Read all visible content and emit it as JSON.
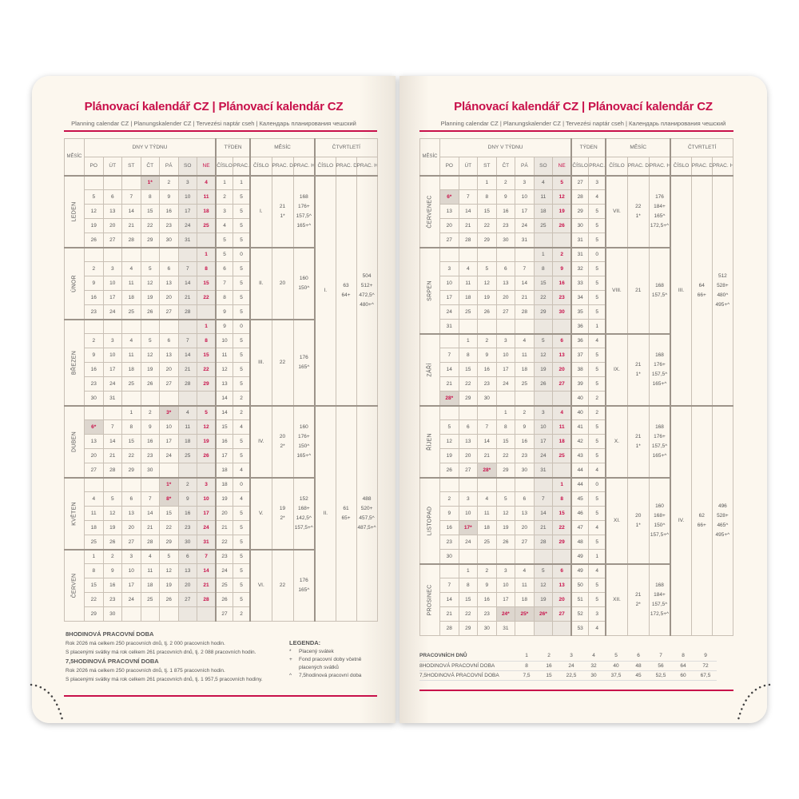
{
  "title": "Plánovací kalendář CZ | Plánovací kalendár CZ",
  "subtitle": "Planning calendar CZ | Planungskalender CZ | Tervezési naptár cseh | Календарь планирования чешский",
  "year": 2026,
  "colors": {
    "accent": "#c8104a",
    "weekend": "#ece7e0",
    "holiday": "#ddd6ce",
    "paper": "#fcf7ee"
  },
  "headers": {
    "month": "MĚSÍC",
    "days": "DNY V TÝDNU",
    "week": "TÝDEN",
    "month_group": "MĚSÍC",
    "quarter": "ČTVRTLETÍ",
    "num": "ČÍSLO",
    "wdays": "PRAC. DNŮ",
    "whours": "PRAC. HODIN",
    "weekdays": [
      "PO",
      "ÚT",
      "ST",
      "ČT",
      "PÁ",
      "SO",
      "NE"
    ]
  },
  "holidays": [
    "1-1",
    "4-3",
    "4-6",
    "5-1",
    "5-8",
    "7-6",
    "9-28",
    "10-28",
    "11-17",
    "12-24",
    "12-25",
    "12-26"
  ],
  "holiday_mark": "*",
  "months": [
    {
      "name": "LEDEN",
      "num": "I.",
      "days": [
        "21",
        "1*"
      ],
      "hours": [
        "168",
        "176+",
        "157,5^",
        "165+^"
      ]
    },
    {
      "name": "ÚNOR",
      "num": "II.",
      "days": [
        "20"
      ],
      "hours": [
        "160",
        "150^"
      ]
    },
    {
      "name": "BŘEZEN",
      "num": "III.",
      "days": [
        "22"
      ],
      "hours": [
        "176",
        "165^"
      ]
    },
    {
      "name": "DUBEN",
      "num": "IV.",
      "days": [
        "20",
        "2*"
      ],
      "hours": [
        "160",
        "176+",
        "150^",
        "165+^"
      ]
    },
    {
      "name": "KVĚTEN",
      "num": "V.",
      "days": [
        "19",
        "2*"
      ],
      "hours": [
        "152",
        "168+",
        "142,5^",
        "157,5+^"
      ]
    },
    {
      "name": "ČERVEN",
      "num": "VI.",
      "days": [
        "22"
      ],
      "hours": [
        "176",
        "165^"
      ]
    },
    {
      "name": "ČERVENEC",
      "num": "VII.",
      "days": [
        "22",
        "1*"
      ],
      "hours": [
        "176",
        "184+",
        "165^",
        "172,5+^"
      ]
    },
    {
      "name": "SRPEN",
      "num": "VIII.",
      "days": [
        "21"
      ],
      "hours": [
        "168",
        "157,5^"
      ]
    },
    {
      "name": "ZÁŘÍ",
      "num": "IX.",
      "days": [
        "21",
        "1*"
      ],
      "hours": [
        "168",
        "176+",
        "157,5^",
        "165+^"
      ]
    },
    {
      "name": "ŘÍJEN",
      "num": "X.",
      "days": [
        "21",
        "1*"
      ],
      "hours": [
        "168",
        "176+",
        "157,5^",
        "165+^"
      ]
    },
    {
      "name": "LISTOPAD",
      "num": "XI.",
      "days": [
        "20",
        "1*"
      ],
      "hours": [
        "160",
        "168+",
        "150^",
        "157,5+^"
      ]
    },
    {
      "name": "PROSINEC",
      "num": "XII.",
      "days": [
        "21",
        "2*"
      ],
      "hours": [
        "168",
        "184+",
        "157,5^",
        "172,5+^"
      ]
    }
  ],
  "quarters": [
    {
      "num": "I.",
      "days": [
        "63",
        "64+"
      ],
      "hours": [
        "504",
        "512+",
        "472,5^",
        "480+^"
      ]
    },
    {
      "num": "II.",
      "days": [
        "61",
        "65+"
      ],
      "hours": [
        "488",
        "520+",
        "457,5^",
        "487,5+^"
      ]
    },
    {
      "num": "III.",
      "days": [
        "64",
        "66+"
      ],
      "hours": [
        "512",
        "528+",
        "480^",
        "495+^"
      ]
    },
    {
      "num": "IV.",
      "days": [
        "62",
        "66+"
      ],
      "hours": [
        "496",
        "528+",
        "465^",
        "495+^"
      ]
    }
  ],
  "footer_left": {
    "h8": "8HODINOVÁ PRACOVNÍ DOBA",
    "h8_l1": "Rok 2026 má celkem 250 pracovních dnů, tj. 2 000 pracovních hodin.",
    "h8_l2": "S placenými svátky má rok celkem 261 pracovních dnů, tj. 2 088 pracovních hodin.",
    "h75": "7,5HODINOVÁ PRACOVNÍ DOBA",
    "h75_l1": "Rok 2026 má celkem 250 pracovních dnů, tj. 1 875 pracovních hodin.",
    "h75_l2": "S placenými svátky má rok celkem 261 pracovních dnů, tj. 1 957,5 pracovních hodiny."
  },
  "legend": {
    "title": "LEGENDA:",
    "items": [
      {
        "sym": "*",
        "text": "Placený svátek"
      },
      {
        "sym": "+",
        "text": "Fond pracovní doby včetně placených svátků"
      },
      {
        "sym": "^",
        "text": "7,5hodinová pracovní doba"
      }
    ]
  },
  "footer_right": {
    "rows": [
      {
        "label": "PRACOVNÍCH DNŮ",
        "values": [
          "1",
          "2",
          "3",
          "4",
          "5",
          "6",
          "7",
          "8",
          "9"
        ]
      },
      {
        "label": "8HODINOVÁ PRACOVNÍ DOBA",
        "values": [
          "8",
          "16",
          "24",
          "32",
          "40",
          "48",
          "56",
          "64",
          "72"
        ]
      },
      {
        "label": "7,5HODINOVÁ PRACOVNÍ DOBA",
        "values": [
          "7,5",
          "15",
          "22,5",
          "30",
          "37,5",
          "45",
          "52,5",
          "60",
          "67,5"
        ]
      }
    ]
  }
}
